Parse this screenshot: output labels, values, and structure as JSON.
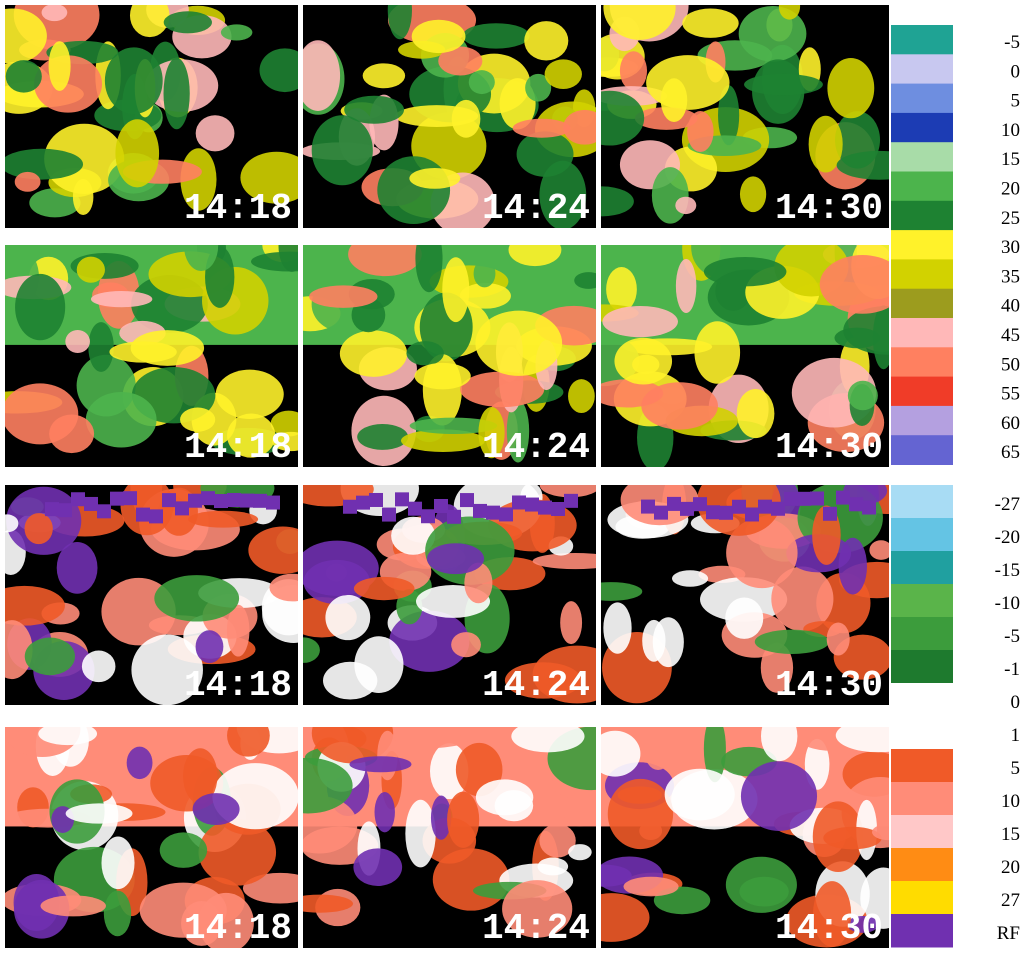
{
  "panels": [
    {
      "times": [
        "14:18",
        "14:24",
        "14:30"
      ]
    },
    {
      "times": [
        "14:18",
        "14:24",
        "14:30"
      ]
    },
    {
      "times": [
        "14:18",
        "14:24",
        "14:30"
      ]
    },
    {
      "times": [
        "14:18",
        "14:24",
        "14:30"
      ]
    }
  ],
  "legends": [
    {
      "labels": [
        "-5",
        "0",
        "5",
        "10",
        "15",
        "20",
        "25",
        "30",
        "35",
        "40",
        "45",
        "50",
        "55",
        "60",
        "65"
      ],
      "colors": [
        "#1fa394",
        "#c8c8f0",
        "#6e8ee0",
        "#1c3cb4",
        "#a8dca8",
        "#4cb44c",
        "#1e8232",
        "#fff22a",
        "#d2d200",
        "#9c9c1e",
        "#ffb8b8",
        "#ff8060",
        "#f03c28",
        "#b4a0e0",
        "#6464d2"
      ]
    },
    {
      "labels": [
        "-27",
        "-20",
        "-15",
        "-10",
        "-5",
        "-1",
        "0",
        "1",
        "5",
        "10",
        "15",
        "20",
        "27",
        "RF"
      ],
      "colors": [
        "#a8dcf4",
        "#64c4e4",
        "#20a0a0",
        "#5ab44a",
        "#3c9c3c",
        "#1e7a2e",
        "#ffffff",
        "#ffffff",
        "#f05a28",
        "#ff8c78",
        "#ffc8c8",
        "#ff8c14",
        "#ffdc00",
        "#7030b0"
      ]
    }
  ]
}
